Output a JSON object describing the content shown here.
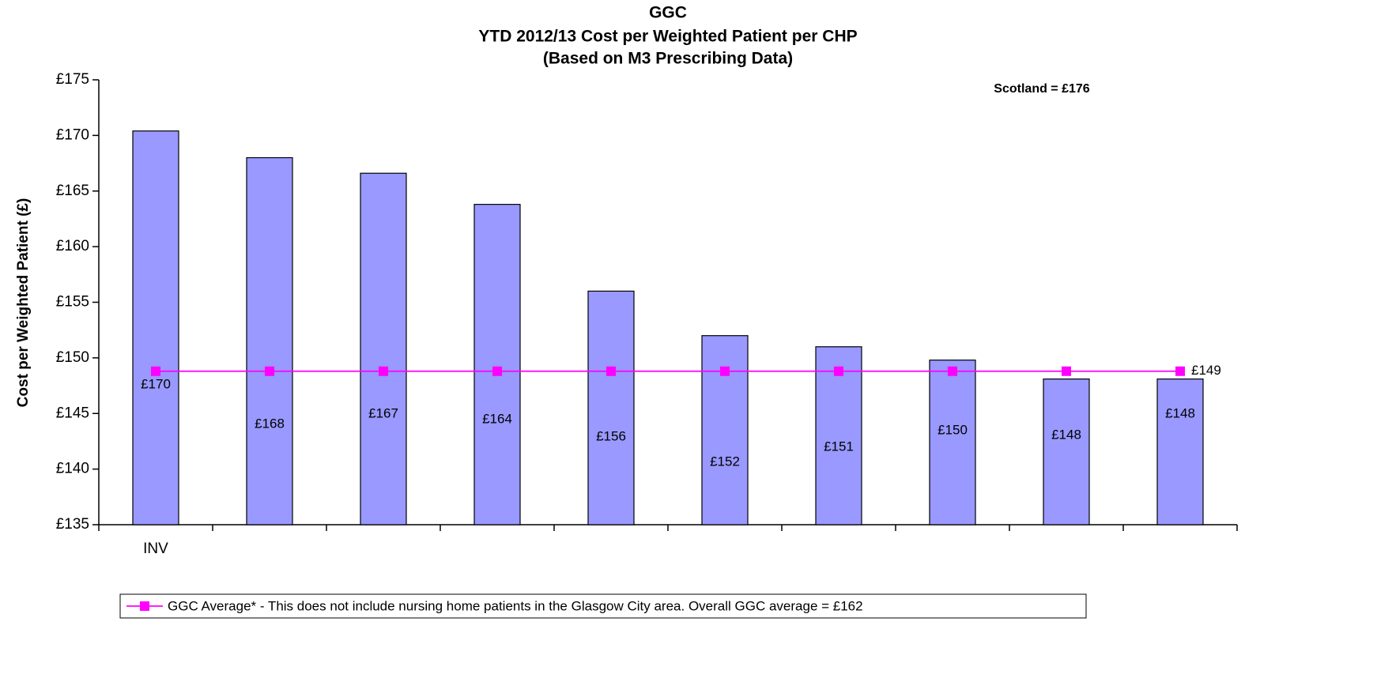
{
  "chart_data": {
    "type": "bar",
    "title": [
      "GGC",
      "YTD 2012/13 Cost per Weighted Patient per CHP",
      "(Based on M3 Prescribing Data)"
    ],
    "y_label": "Cost per Weighted Patient (£)",
    "annotation": "Scotland = £176",
    "categories": [
      "INV",
      null,
      null,
      null,
      null,
      null,
      null,
      null,
      null,
      null
    ],
    "series": [
      {
        "name": null,
        "type": "bar",
        "color": "#9999ff",
        "values": [
          170.4,
          168.0,
          166.6,
          163.8,
          156.0,
          152.0,
          151.0,
          149.8,
          148.1,
          148.1
        ],
        "value_labels": [
          "£170",
          "£168",
          "£167",
          "£164",
          "£156",
          "£152",
          "£151",
          "£150",
          "£148",
          "£148"
        ]
      },
      {
        "name": "GGC Average* - This does not include nursing home patients in the Glasgow City area. Overall GGC average = £162",
        "type": "line",
        "color": "#ff00ff",
        "values": [
          148.8,
          148.8,
          148.8,
          148.8,
          148.8,
          148.8,
          148.8,
          148.8,
          148.8,
          148.8
        ],
        "value_labels": [
          null,
          null,
          null,
          null,
          null,
          null,
          null,
          null,
          null,
          "£149"
        ]
      }
    ],
    "ylim": [
      135,
      175
    ],
    "yticks": [
      {
        "value": 135,
        "label": "£135"
      },
      {
        "value": 140,
        "label": "£140"
      },
      {
        "value": 145,
        "label": "£145"
      },
      {
        "value": 150,
        "label": "£150"
      },
      {
        "value": 155,
        "label": "£155"
      },
      {
        "value": 160,
        "label": "£160"
      },
      {
        "value": 165,
        "label": "£165"
      },
      {
        "value": 170,
        "label": "£170"
      },
      {
        "value": 175,
        "label": "£175"
      }
    ],
    "grid": false,
    "legend": "bottom"
  }
}
